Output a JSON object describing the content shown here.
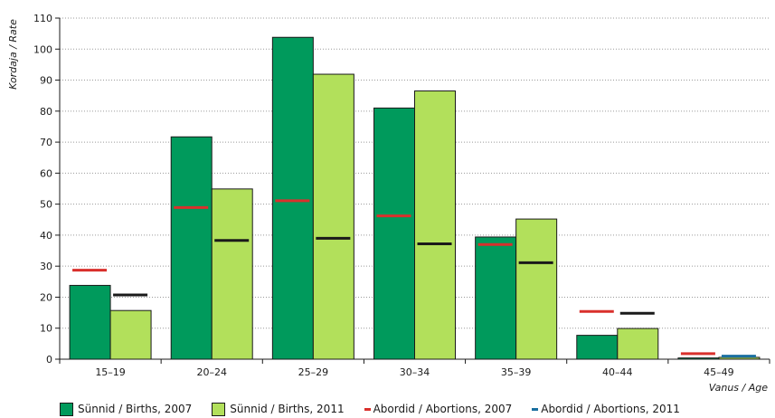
{
  "chart_data": {
    "type": "bar",
    "title": "",
    "xlabel": "Vanus / Age",
    "ylabel": "Kordaja / Rate",
    "ylim": [
      0,
      110
    ],
    "yticks": [
      0,
      10,
      20,
      30,
      40,
      50,
      60,
      70,
      80,
      90,
      100,
      110
    ],
    "categories": [
      "15–19",
      "20–24",
      "25–29",
      "30–34",
      "35–39",
      "40–44",
      "45–49"
    ],
    "series": [
      {
        "name": "Sünnid / Births, 2007",
        "kind": "bar",
        "color": "#009a5c",
        "values": [
          23.8,
          71.7,
          103.8,
          81.0,
          39.4,
          7.7,
          0.4
        ]
      },
      {
        "name": "Sünnid / Births, 2011",
        "kind": "bar",
        "color": "#b2e05b",
        "values": [
          15.7,
          54.9,
          91.9,
          86.5,
          45.2,
          9.9,
          0.6
        ]
      },
      {
        "name": "Abordid / Abortions, 2007",
        "kind": "marker",
        "color": "#d9302c",
        "values": [
          28.7,
          48.9,
          51.1,
          46.2,
          37.0,
          15.4,
          1.8
        ]
      },
      {
        "name": "Abordid / Abortions, 2011",
        "kind": "marker",
        "color": "#1a1a1a",
        "values": [
          20.7,
          38.3,
          39.0,
          37.2,
          31.1,
          14.8,
          1.0
        ]
      }
    ],
    "marker_colors_2011_last": "#1a6fa0",
    "grid": true,
    "legend_position": "bottom"
  }
}
